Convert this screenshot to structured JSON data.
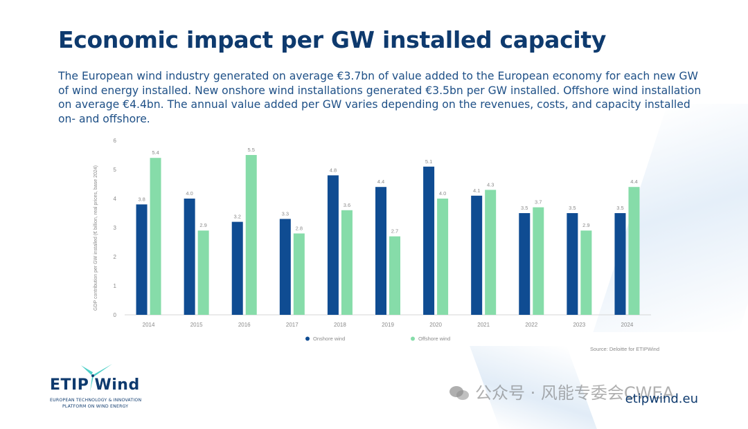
{
  "slide": {
    "title": "Economic impact per GW installed capacity",
    "description": "The European wind industry generated on average €3.7bn of value added to the European economy for each new GW of wind energy installed. New onshore wind installations generated €3.5bn per GW installed. Offshore wind installation on average €4.4bn. The annual value added per GW varies depending on the revenues, costs, and capacity installed on- and offshore.",
    "source": "Source: Deloitte for ETIPWind",
    "website": "etipwind.eu",
    "watermark": "公众号 · 风能专委会CWEA"
  },
  "logo": {
    "name": "ETIP Wind",
    "line1": "EUROPEAN TECHNOLOGY & INNOVATION",
    "line2": "PLATFORM ON WIND ENERGY"
  },
  "colors": {
    "title": "#0e3a6e",
    "onshore": "#0f4c92",
    "offshore": "#86dca9",
    "axis_text": "#8a8a8a"
  },
  "chart_data": {
    "type": "bar",
    "title": "",
    "xlabel": "",
    "ylabel": "GDP contribution per GW installed (€ billion, real prices, base 2024)",
    "ylim": [
      0,
      6
    ],
    "yticks": [
      "0",
      "1",
      "2",
      "3",
      "4",
      "5",
      "6"
    ],
    "categories": [
      "2014",
      "2015",
      "2016",
      "2017",
      "2018",
      "2019",
      "2020",
      "2021",
      "2022",
      "2023",
      "2024"
    ],
    "series": [
      {
        "name": "Onshore wind",
        "values": [
          3.8,
          4.0,
          3.2,
          3.3,
          4.8,
          4.4,
          5.1,
          4.1,
          3.5,
          3.5,
          3.5
        ],
        "labels": [
          "3.8",
          "4.0",
          "3.2",
          "3.3",
          "4.8",
          "4.4",
          "5.1",
          "4.1",
          "3.5",
          "3.5",
          "3.5"
        ]
      },
      {
        "name": "Offshore wind",
        "values": [
          5.4,
          2.9,
          5.5,
          2.8,
          3.6,
          2.7,
          4.0,
          4.3,
          3.7,
          2.9,
          4.4
        ],
        "labels": [
          "5.4",
          "2.9",
          "5.5",
          "2.8",
          "3.6",
          "2.7",
          "4.0",
          "4.3",
          "3.7",
          "2.9",
          "4.4"
        ]
      }
    ],
    "legend": "bottom",
    "grid": false
  }
}
